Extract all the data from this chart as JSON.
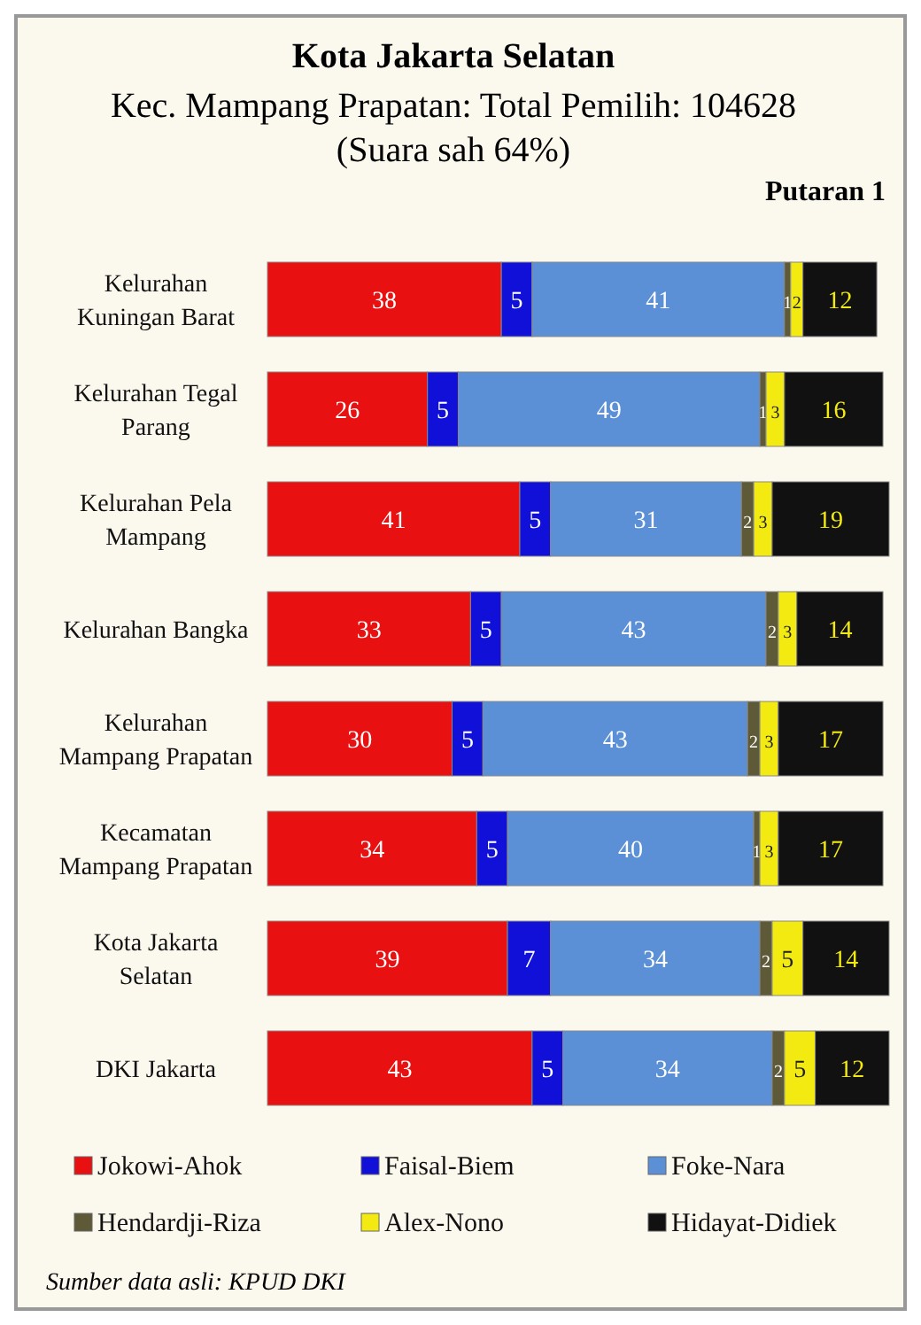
{
  "chart_data": {
    "type": "bar",
    "orientation": "horizontal",
    "stacked": true,
    "data_labels": true,
    "legend": "bottom",
    "title": "Kota Jakarta Selatan",
    "subtitle": "Kec. Mampang Prapatan: Total Pemilih: 104628 (Suara sah 64%)",
    "annotations": [
      "Putaran 1",
      "Sumber data asli: KPUD DKI"
    ],
    "categories": [
      "Kelurahan Kuningan Barat",
      "Kelurahan Tegal Parang",
      "Kelurahan Pela Mampang",
      "Kelurahan Bangka",
      "Kelurahan Mampang Prapatan",
      "Kecamatan Mampang Prapatan",
      "Kota Jakarta Selatan",
      "DKI Jakarta"
    ],
    "series": [
      {
        "name": "Jokowi-Ahok",
        "color": "#e81010",
        "values": [
          38,
          26,
          41,
          33,
          30,
          34,
          39,
          43
        ]
      },
      {
        "name": "Faisal-Biem",
        "color": "#1010d8",
        "values": [
          5,
          5,
          5,
          5,
          5,
          5,
          7,
          5
        ]
      },
      {
        "name": "Foke-Nara",
        "color": "#5b8fd6",
        "values": [
          41,
          49,
          31,
          43,
          43,
          40,
          34,
          34
        ]
      },
      {
        "name": "Hendardji-Riza",
        "color": "#5e5a38",
        "values": [
          1,
          1,
          2,
          2,
          2,
          1,
          2,
          2
        ]
      },
      {
        "name": "Alex-Nono",
        "color": "#f2ea10",
        "values": [
          2,
          3,
          3,
          3,
          3,
          3,
          5,
          5
        ]
      },
      {
        "name": "Hidayat-Didiek",
        "color": "#111111",
        "values": [
          12,
          16,
          19,
          14,
          17,
          17,
          14,
          12
        ]
      }
    ]
  }
}
